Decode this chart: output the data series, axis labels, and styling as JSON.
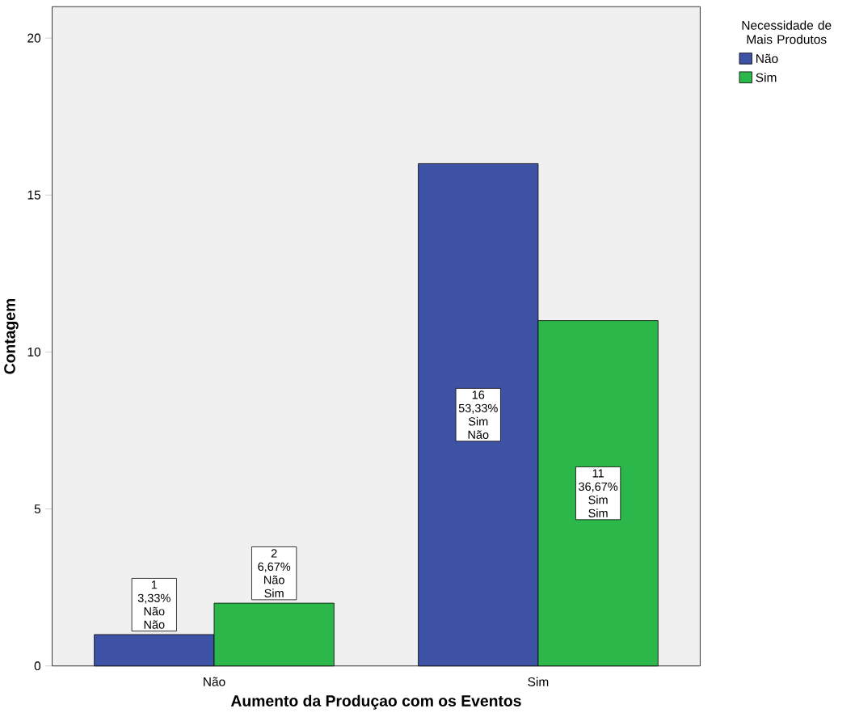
{
  "chart_data": {
    "type": "bar",
    "xlabel": "Aumento da Produçao com os Eventos",
    "ylabel": "Contagem",
    "legend_title": "Necessidade de Mais Produtos",
    "legend": "top right",
    "categories": [
      "Não",
      "Sim"
    ],
    "series": [
      {
        "name": "Não",
        "color": "#3e53a6",
        "values": [
          1,
          16
        ],
        "value_labels": [
          "1 3,33% Não Não",
          "16 53,33% Sim Não"
        ]
      },
      {
        "name": "Sim",
        "color": "#2cb74a",
        "values": [
          2,
          11
        ],
        "value_labels": [
          "2 6,67% Não Sim",
          "11 36,67% Sim Sim"
        ]
      }
    ],
    "ylim": [
      0,
      21
    ],
    "yticks": [
      0,
      5,
      10,
      15,
      20
    ]
  }
}
